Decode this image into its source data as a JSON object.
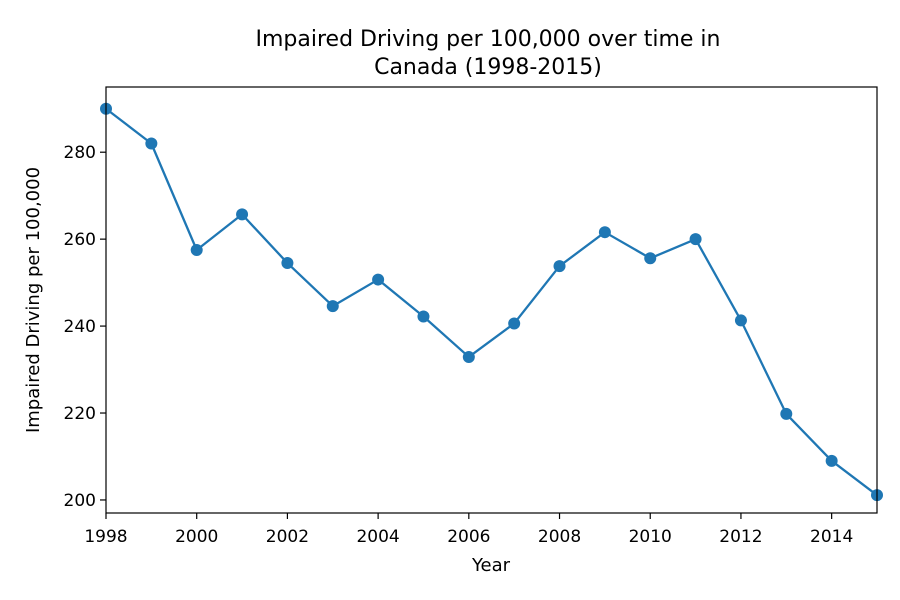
{
  "chart_data": {
    "type": "line",
    "title": "Impaired Driving per 100,000 over time in Canada (1998-2015)",
    "title_lines": [
      "Impaired Driving per 100,000 over time in",
      "Canada (1998-2015)"
    ],
    "xlabel": "Year",
    "ylabel": "Impaired Driving per 100,000",
    "xlim": [
      1998,
      2015
    ],
    "ylim": [
      197,
      295
    ],
    "xticks": [
      1998,
      2000,
      2002,
      2004,
      2006,
      2008,
      2010,
      2012,
      2014
    ],
    "yticks": [
      200,
      220,
      240,
      260,
      280
    ],
    "grid": false,
    "line_color": "#1f77b4",
    "series": [
      {
        "x": [
          1998,
          1999,
          2000,
          2001,
          2002,
          2003,
          2004,
          2005,
          2006,
          2007,
          2008,
          2009,
          2010,
          2011,
          2012,
          2013,
          2014,
          2015
        ],
        "values": [
          290.0,
          282.0,
          257.5,
          265.7,
          254.5,
          244.6,
          250.7,
          242.2,
          232.9,
          240.6,
          253.8,
          261.6,
          255.6,
          260.0,
          241.3,
          219.8,
          209.0,
          201.1
        ]
      }
    ]
  }
}
